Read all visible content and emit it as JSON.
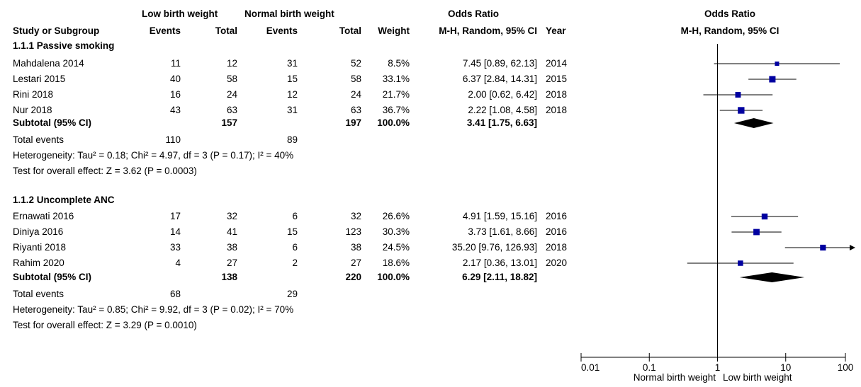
{
  "headers": {
    "group1": "Low birth weight",
    "group2": "Normal birth weight",
    "or_title": "Odds Ratio",
    "plot_title": "Odds Ratio",
    "plot_method": "M-H, Random, 95% CI",
    "study": "Study or Subgroup",
    "events1": "Events",
    "total1": "Total",
    "events2": "Events",
    "total2": "Total",
    "weight": "Weight",
    "method": "M-H, Random, 95% CI",
    "year": "Year"
  },
  "subgroups": [
    {
      "title": "1.1.1 Passive smoking",
      "studies": [
        {
          "name": "Mahdalena 2014",
          "e1": "11",
          "t1": "12",
          "e2": "31",
          "t2": "52",
          "weight": "8.5%",
          "ci": "7.45 [0.89, 62.13]",
          "year": "2014"
        },
        {
          "name": "Lestari 2015",
          "e1": "40",
          "t1": "58",
          "e2": "15",
          "t2": "58",
          "weight": "33.1%",
          "ci": "6.37 [2.84, 14.31]",
          "year": "2015"
        },
        {
          "name": "Rini 2018",
          "e1": "16",
          "t1": "24",
          "e2": "12",
          "t2": "24",
          "weight": "21.7%",
          "ci": "2.00 [0.62, 6.42]",
          "year": "2018"
        },
        {
          "name": "Nur 2018",
          "e1": "43",
          "t1": "63",
          "e2": "31",
          "t2": "63",
          "weight": "36.7%",
          "ci": "2.22 [1.08, 4.58]",
          "year": "2018"
        }
      ],
      "subtotal": {
        "label": "Subtotal (95% CI)",
        "t1": "157",
        "t2": "197",
        "weight": "100.0%",
        "ci": "3.41 [1.75, 6.63]"
      },
      "total_events": {
        "label": "Total events",
        "e1": "110",
        "e2": "89"
      },
      "heterogeneity": "Heterogeneity: Tau² = 0.18; Chi² = 4.97, df = 3 (P = 0.17); I² = 40%",
      "overall": "Test for overall effect: Z = 3.62 (P = 0.0003)"
    },
    {
      "title": "1.1.2 Uncomplete ANC",
      "studies": [
        {
          "name": "Ernawati 2016",
          "e1": "17",
          "t1": "32",
          "e2": "6",
          "t2": "32",
          "weight": "26.6%",
          "ci": "4.91 [1.59, 15.16]",
          "year": "2016"
        },
        {
          "name": "Diniya 2016",
          "e1": "14",
          "t1": "41",
          "e2": "15",
          "t2": "123",
          "weight": "30.3%",
          "ci": "3.73 [1.61, 8.66]",
          "year": "2016"
        },
        {
          "name": "Riyanti 2018",
          "e1": "33",
          "t1": "38",
          "e2": "6",
          "t2": "38",
          "weight": "24.5%",
          "ci": "35.20 [9.76, 126.93]",
          "year": "2018"
        },
        {
          "name": "Rahim 2020",
          "e1": "4",
          "t1": "27",
          "e2": "2",
          "t2": "27",
          "weight": "18.6%",
          "ci": "2.17 [0.36, 13.01]",
          "year": "2020"
        }
      ],
      "subtotal": {
        "label": "Subtotal (95% CI)",
        "t1": "138",
        "t2": "220",
        "weight": "100.0%",
        "ci": "6.29 [2.11, 18.82]"
      },
      "total_events": {
        "label": "Total events",
        "e1": "68",
        "e2": "29"
      },
      "heterogeneity": "Heterogeneity: Tau² = 0.85; Chi² = 9.92, df = 3 (P = 0.02); I² = 70%",
      "overall": "Test for overall effect: Z = 3.29 (P = 0.0010)"
    }
  ],
  "chart_data": {
    "type": "forest",
    "scale": "log",
    "xlim": [
      0.01,
      100
    ],
    "ticks": [
      "0.01",
      "0.1",
      "1",
      "10",
      "100"
    ],
    "tick_values": [
      0.01,
      0.1,
      1,
      10,
      100
    ],
    "null_line": 1,
    "xlabel_left": "Normal birth weight",
    "xlabel_right": "Low birth weight",
    "marker_color": "#0000a0",
    "studies": [
      {
        "name": "Mahdalena 2014",
        "or": 7.45,
        "lo": 0.89,
        "hi": 62.13,
        "weight": 8.5
      },
      {
        "name": "Lestari 2015",
        "or": 6.37,
        "lo": 2.84,
        "hi": 14.31,
        "weight": 33.1
      },
      {
        "name": "Rini 2018",
        "or": 2.0,
        "lo": 0.62,
        "hi": 6.42,
        "weight": 21.7
      },
      {
        "name": "Nur 2018",
        "or": 2.22,
        "lo": 1.08,
        "hi": 4.58,
        "weight": 36.7
      },
      {
        "name": "Ernawati 2016",
        "or": 4.91,
        "lo": 1.59,
        "hi": 15.16,
        "weight": 26.6
      },
      {
        "name": "Diniya 2016",
        "or": 3.73,
        "lo": 1.61,
        "hi": 8.66,
        "weight": 30.3
      },
      {
        "name": "Riyanti 2018",
        "or": 35.2,
        "lo": 9.76,
        "hi": 126.93,
        "weight": 24.5
      },
      {
        "name": "Rahim 2020",
        "or": 2.17,
        "lo": 0.36,
        "hi": 13.01,
        "weight": 18.6
      }
    ],
    "subtotals": [
      {
        "name": "Subtotal 1.1.1",
        "or": 3.41,
        "lo": 1.75,
        "hi": 6.63
      },
      {
        "name": "Subtotal 1.1.2",
        "or": 6.29,
        "lo": 2.11,
        "hi": 18.82
      }
    ]
  }
}
